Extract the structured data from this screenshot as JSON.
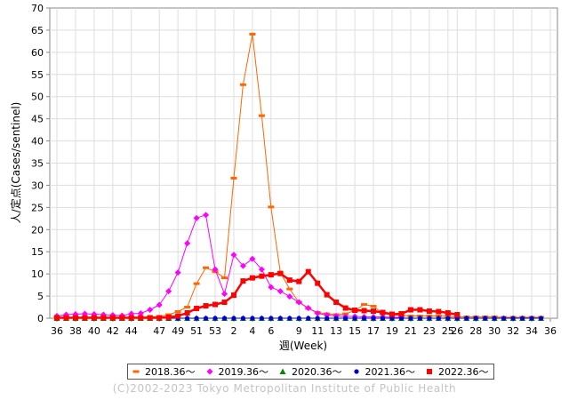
{
  "chart_data": {
    "type": "line",
    "xlabel": "週(Week)",
    "ylabel": "人/定点(Cases/sentinel)",
    "ylim": [
      0,
      70
    ],
    "yticks": [
      0,
      5,
      10,
      15,
      20,
      25,
      30,
      35,
      40,
      45,
      50,
      55,
      60,
      65,
      70
    ],
    "x": [
      "36",
      "37",
      "38",
      "39",
      "40",
      "41",
      "42",
      "43",
      "44",
      "45",
      "46",
      "47",
      "48",
      "49",
      "50",
      "51",
      "52",
      "53",
      "1",
      "2",
      "3",
      "4",
      "5",
      "6",
      "7",
      "8",
      "9",
      "10",
      "11",
      "12",
      "13",
      "14",
      "15",
      "16",
      "17",
      "18",
      "19",
      "20",
      "21",
      "22",
      "23",
      "24",
      "25",
      "26",
      "27",
      "28",
      "29",
      "30",
      "31",
      "32",
      "33",
      "34",
      "35",
      "36"
    ],
    "xtick_labels": [
      "36",
      "38",
      "40",
      "42",
      "44",
      "47",
      "49",
      "51",
      "53",
      "2",
      "4",
      "6",
      "9",
      "11",
      "13",
      "15",
      "17",
      "19",
      "21",
      "23",
      "25",
      "26",
      "28",
      "30",
      "32",
      "34",
      "36"
    ],
    "grid": true,
    "legend_position": "bottom",
    "series": [
      {
        "name": "2018.36～",
        "color": "#ff6600",
        "marker": "dash",
        "width": 1,
        "values": [
          0.2,
          0.2,
          0.2,
          0.2,
          0.2,
          0.2,
          0.2,
          0.2,
          0.2,
          0.2,
          0.3,
          0.4,
          0.8,
          1.5,
          2.5,
          7.8,
          11.4,
          10.5,
          9.1,
          31.6,
          52.7,
          64.1,
          45.7,
          25.1,
          10.3,
          6.6,
          3.6,
          2.2,
          1.3,
          1.0,
          0.8,
          1.0,
          1.7,
          3.1,
          2.7,
          1.1,
          0.8,
          0.6,
          0.5,
          0.5,
          0.5,
          0.5,
          0.4,
          0.3,
          0.3,
          0.3,
          0.3,
          0.3,
          0.2,
          0.2,
          0.2,
          0.2,
          0.2,
          null
        ]
      },
      {
        "name": "2019.36～",
        "color": "#ff00ff",
        "marker": "diamond",
        "width": 1,
        "values": [
          0.5,
          0.8,
          0.9,
          1.0,
          0.9,
          0.8,
          0.7,
          0.6,
          1.0,
          1.1,
          1.9,
          3.0,
          6.1,
          10.3,
          16.9,
          22.6,
          23.3,
          11.0,
          5.5,
          14.3,
          11.8,
          13.4,
          11.0,
          7.0,
          6.1,
          4.9,
          3.6,
          2.3,
          1.1,
          0.7,
          0.5,
          0.4,
          0.4,
          0.3,
          0.3,
          0.3,
          0.2,
          0.2,
          null,
          null,
          null,
          null,
          null,
          null,
          null,
          null,
          null,
          null,
          null,
          null,
          null,
          null,
          null,
          null
        ]
      },
      {
        "name": "2020.36～",
        "color": "#008800",
        "marker": "triangle",
        "width": 1,
        "values": [
          0,
          0,
          0,
          0,
          0,
          0,
          0,
          0,
          0,
          0,
          0,
          0,
          0,
          0,
          0,
          0,
          0,
          0,
          0,
          0,
          0,
          0,
          0,
          0,
          0,
          0,
          0,
          0,
          0,
          0,
          0,
          0,
          0,
          0,
          0,
          0,
          0,
          0,
          0,
          0,
          0,
          0,
          0,
          0,
          0,
          0,
          0,
          0,
          0,
          0,
          0,
          0,
          0,
          null
        ]
      },
      {
        "name": "2021.36～",
        "color": "#0000cc",
        "marker": "circle",
        "width": 1,
        "values": [
          0,
          0,
          0,
          0,
          0,
          0,
          0,
          0,
          0,
          0,
          0,
          0,
          0,
          0,
          0,
          0,
          0,
          0,
          0,
          0,
          0,
          0,
          0,
          0,
          0,
          0,
          0,
          0,
          0,
          0,
          0,
          0,
          0,
          0,
          0,
          0,
          0,
          0,
          0,
          0,
          0,
          0,
          0,
          0,
          0,
          0,
          0,
          0,
          0,
          0,
          0,
          0,
          0,
          null
        ]
      },
      {
        "name": "2022.36～",
        "color": "#ff0000",
        "marker": "square",
        "width": 2.5,
        "values": [
          0.1,
          0.1,
          0.1,
          0.1,
          0.1,
          0.1,
          0.1,
          0.1,
          0.1,
          0.1,
          0.1,
          0.1,
          0.2,
          0.5,
          1.2,
          2.2,
          2.8,
          3.1,
          3.6,
          5.2,
          8.4,
          9.1,
          9.5,
          9.8,
          10.1,
          8.6,
          8.3,
          10.5,
          7.9,
          5.3,
          3.6,
          2.3,
          1.8,
          1.7,
          1.6,
          1.3,
          0.9,
          1.0,
          1.9,
          1.9,
          1.6,
          1.5,
          1.2,
          0.8,
          null,
          null,
          null,
          null,
          null,
          null,
          null,
          null,
          null,
          null
        ]
      }
    ]
  },
  "copyright": "(C)2002-2023 Tokyo Metropolitan Institute of Public Health"
}
